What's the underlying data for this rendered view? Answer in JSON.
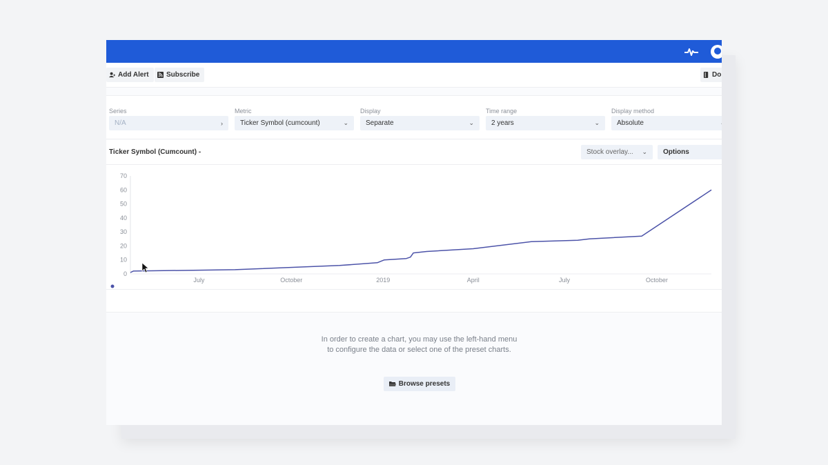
{
  "toolbar": {
    "add_alert": "Add Alert",
    "subscribe": "Subscribe",
    "download_partial": "Do"
  },
  "filters": [
    {
      "label": "Series",
      "value": "N/A",
      "icon": "chevron-right-icon"
    },
    {
      "label": "Metric",
      "value": "Ticker Symbol (cumcount)",
      "icon": "chevron-down-icon"
    },
    {
      "label": "Display",
      "value": "Separate",
      "icon": "chevron-down-icon"
    },
    {
      "label": "Time range",
      "value": "2 years",
      "icon": "chevron-down-icon"
    },
    {
      "label": "Display method",
      "value": "Absolute",
      "icon": "chevron-down-icon"
    }
  ],
  "chart_header": {
    "title": "Ticker Symbol (Cumcount) -",
    "stock_overlay": "Stock overlay...",
    "options": "Options"
  },
  "chart_data": {
    "type": "line",
    "y_ticks": [
      "0",
      "10",
      "20",
      "30",
      "40",
      "50",
      "60",
      "70"
    ],
    "x_ticks": [
      {
        "label": "July",
        "t": 0.118
      },
      {
        "label": "October",
        "t": 0.277
      },
      {
        "label": "2019",
        "t": 0.435
      },
      {
        "label": "April",
        "t": 0.59
      },
      {
        "label": "July",
        "t": 0.747
      },
      {
        "label": "October",
        "t": 0.906
      }
    ],
    "ylim": [
      0,
      70
    ],
    "color": "#4b52a8",
    "series": [
      {
        "points": [
          [
            0.0,
            1
          ],
          [
            0.005,
            2
          ],
          [
            0.18,
            3
          ],
          [
            0.36,
            6
          ],
          [
            0.425,
            8
          ],
          [
            0.437,
            10
          ],
          [
            0.475,
            11
          ],
          [
            0.482,
            12
          ],
          [
            0.487,
            15
          ],
          [
            0.51,
            16
          ],
          [
            0.59,
            18
          ],
          [
            0.69,
            23
          ],
          [
            0.77,
            24
          ],
          [
            0.79,
            25
          ],
          [
            0.88,
            27
          ],
          [
            1.0,
            60
          ]
        ]
      }
    ]
  },
  "empty_state": {
    "line1": "In order to create a chart, you may use the left-hand menu",
    "line2": "to configure the data or select one of the preset charts.",
    "browse_label": "Browse presets"
  },
  "colors": {
    "accent": "#1f5bd8",
    "line": "#4b52a8"
  }
}
